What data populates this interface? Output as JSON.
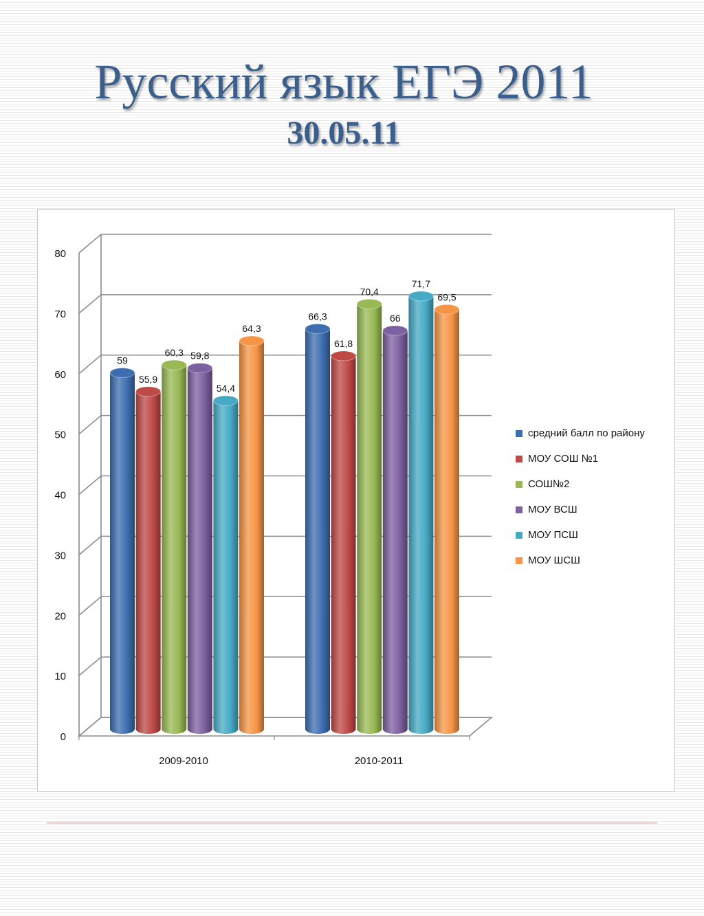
{
  "slide": {
    "title": "Русский язык ЕГЭ 2011",
    "subtitle": "30.05.11"
  },
  "chart_data": {
    "type": "bar",
    "style": "3d-cylinder",
    "categories": [
      "2009-2010",
      "2010-2011"
    ],
    "series": [
      {
        "name": "средний балл по району",
        "values": [
          59,
          66.3
        ],
        "labels": [
          "59",
          "66,3"
        ],
        "color": "#3d6eb0"
      },
      {
        "name": "МОУ СОШ №1",
        "values": [
          55.9,
          61.8
        ],
        "labels": [
          "55,9",
          "61,8"
        ],
        "color": "#be4a47"
      },
      {
        "name": "СОШ№2",
        "values": [
          60.3,
          70.4
        ],
        "labels": [
          "60,3",
          "70,4"
        ],
        "color": "#98b954"
      },
      {
        "name": "МОУ ВСШ",
        "values": [
          59.8,
          66
        ],
        "labels": [
          "59,8",
          "66"
        ],
        "color": "#7d60a0"
      },
      {
        "name": "МОУ ПСШ",
        "values": [
          54.4,
          71.7
        ],
        "labels": [
          "54,4",
          "71,7"
        ],
        "color": "#46aac5"
      },
      {
        "name": "МОУ ШСШ",
        "values": [
          64.3,
          69.5
        ],
        "labels": [
          "64,3",
          "69,5"
        ],
        "color": "#f69546"
      }
    ],
    "y_ticks": [
      "0",
      "10",
      "20",
      "30",
      "40",
      "50",
      "60",
      "70",
      "80"
    ],
    "ylim": [
      0,
      80
    ],
    "grid": true,
    "legend_position": "right"
  }
}
